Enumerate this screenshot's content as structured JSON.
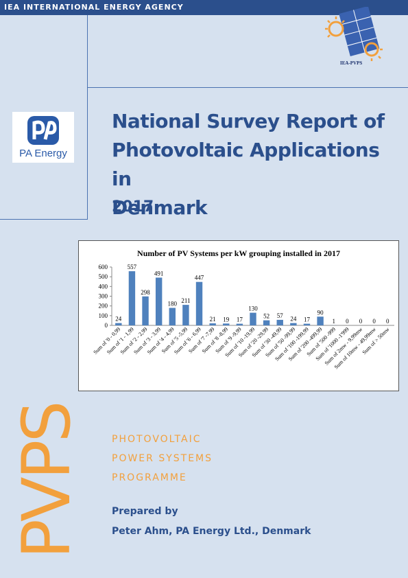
{
  "header": {
    "agency": "IEA INTERNATIONAL ENERGY AGENCY"
  },
  "iea_logo": {
    "caption": "IEA-PVPS"
  },
  "pa_logo": {
    "name": "PA Energy"
  },
  "title": {
    "line1": "National Survey Report of",
    "line2": "Photovoltaic Applications in",
    "line3": "Denmark",
    "year": "2017"
  },
  "chart_data": {
    "type": "bar",
    "title": "Number of PV Systems per kW grouping installed in 2017",
    "categories": [
      "Sum of '0 - 0,99",
      "Sum of '1 - 1,99",
      "Sum of '2 - 2,99",
      "Sum of '3 - 3,99",
      "Sum of '4 - 4,99",
      "Sum of '5 -5,99",
      "Sum of '6 - 6,99",
      "Sum of '7 -7,99",
      "Sum of '8 -8,99",
      "Sum of '9 -9,99",
      "Sum of '10 -19,99",
      "Sum of '20 -29,99",
      "Sum of '30 -49,99",
      "Sum of '50 -99,99",
      "Sum of '100 -199,99",
      "Sum of '200 -499,99",
      "Sum of '500 -999",
      "Sum of '1000 -1'999",
      "Sum of 2mw - 9,99mw",
      "Sum of 10mw - 49,99mw",
      "Sum of > 50mw"
    ],
    "values": [
      24,
      557,
      298,
      491,
      180,
      211,
      447,
      21,
      19,
      17,
      130,
      52,
      57,
      24,
      17,
      90,
      1,
      0,
      0,
      0,
      0
    ],
    "yticks": [
      "0",
      "100",
      "200",
      "300",
      "400",
      "500",
      "600"
    ],
    "ylim": [
      0,
      600
    ],
    "bar_color": "#4f81bd"
  },
  "pvps_mark": {
    "text": "PVPS",
    "color": "#f2a03d"
  },
  "programme": {
    "line1": "PHOTOVOLTAIC",
    "line2": "POWER SYSTEMS",
    "line3": "PROGRAMME"
  },
  "prepared": {
    "label": "Prepared by",
    "author": "Peter Ahm, PA Energy Ltd., Denmark"
  }
}
